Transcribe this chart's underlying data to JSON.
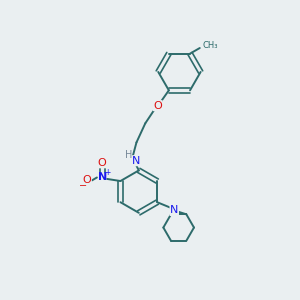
{
  "background_color": "#eaeff1",
  "bond_color": "#2d6b6b",
  "atom_colors": {
    "N": "#1a1aee",
    "O": "#dd1111",
    "H": "#778899",
    "C": "#2d6b6b"
  },
  "figsize": [
    3.0,
    3.0
  ],
  "dpi": 100
}
